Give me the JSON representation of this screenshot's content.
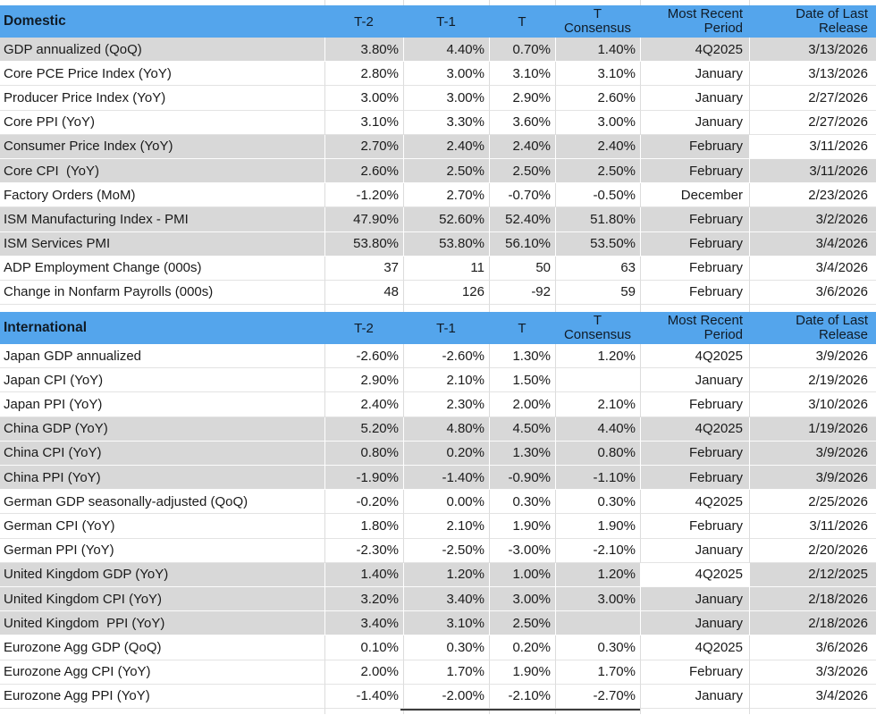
{
  "column_headers": {
    "t2": "T-2",
    "t1": "T-1",
    "t": "T",
    "consensus_line1": "T",
    "consensus_line2": "Consensus",
    "period_line1": "Most Recent",
    "period_line2": "Period",
    "release_line1": "Date of Last",
    "release_line2": "Release"
  },
  "colors": {
    "header_blue": "#54a5ec",
    "row_gray": "#d8d8d8",
    "grid_line": "#dcdcdc",
    "text": "#1a1a1a"
  },
  "sections": [
    {
      "title": "Domestic",
      "rows": [
        {
          "label": "GDP annualized (QoQ)",
          "t2": "3.80%",
          "t1": "4.40%",
          "t": "0.70%",
          "consensus": "1.40%",
          "period": "4Q2025",
          "release": "3/13/2026",
          "shaded": true
        },
        {
          "label": "Core PCE Price Index (YoY)",
          "t2": "2.80%",
          "t1": "3.00%",
          "t": "3.10%",
          "consensus": "3.10%",
          "period": "January",
          "release": "3/13/2026",
          "shaded": false
        },
        {
          "label": "Producer Price Index (YoY)",
          "t2": "3.00%",
          "t1": "3.00%",
          "t": "2.90%",
          "consensus": "2.60%",
          "period": "January",
          "release": "2/27/2026",
          "shaded": false
        },
        {
          "label": "Core PPI (YoY)",
          "t2": "3.10%",
          "t1": "3.30%",
          "t": "3.60%",
          "consensus": "3.00%",
          "period": "January",
          "release": "2/27/2026",
          "shaded": false
        },
        {
          "label": "Consumer Price Index (YoY)",
          "t2": "2.70%",
          "t1": "2.40%",
          "t": "2.40%",
          "consensus": "2.40%",
          "period": "February",
          "release": "3/11/2026",
          "shaded": true,
          "white_cells": [
            "release"
          ]
        },
        {
          "label": "Core CPI  (YoY)",
          "t2": "2.60%",
          "t1": "2.50%",
          "t": "2.50%",
          "consensus": "2.50%",
          "period": "February",
          "release": "3/11/2026",
          "shaded": true
        },
        {
          "label": "Factory Orders (MoM)",
          "t2": "-1.20%",
          "t1": "2.70%",
          "t": "-0.70%",
          "consensus": "-0.50%",
          "period": "December",
          "release": "2/23/2026",
          "shaded": false
        },
        {
          "label": "ISM Manufacturing Index - PMI",
          "t2": "47.90%",
          "t1": "52.60%",
          "t": "52.40%",
          "consensus": "51.80%",
          "period": "February",
          "release": "3/2/2026",
          "shaded": true
        },
        {
          "label": "ISM Services PMI",
          "t2": "53.80%",
          "t1": "53.80%",
          "t": "56.10%",
          "consensus": "53.50%",
          "period": "February",
          "release": "3/4/2026",
          "shaded": true
        },
        {
          "label": "ADP Employment Change (000s)",
          "t2": "37",
          "t1": "11",
          "t": "50",
          "consensus": "63",
          "period": "February",
          "release": "3/4/2026",
          "shaded": false
        },
        {
          "label": "Change in Nonfarm Payrolls (000s)",
          "t2": "48",
          "t1": "126",
          "t": "-92",
          "consensus": "59",
          "period": "February",
          "release": "3/6/2026",
          "shaded": false
        }
      ]
    },
    {
      "title": "International",
      "rows": [
        {
          "label": "Japan GDP annualized",
          "t2": "-2.60%",
          "t1": "-2.60%",
          "t": "1.30%",
          "consensus": "1.20%",
          "period": "4Q2025",
          "release": "3/9/2026",
          "shaded": false
        },
        {
          "label": "Japan CPI (YoY)",
          "t2": "2.90%",
          "t1": "2.10%",
          "t": "1.50%",
          "consensus": "",
          "period": "January",
          "release": "2/19/2026",
          "shaded": false
        },
        {
          "label": "Japan PPI (YoY)",
          "t2": "2.40%",
          "t1": "2.30%",
          "t": "2.00%",
          "consensus": "2.10%",
          "period": "February",
          "release": "3/10/2026",
          "shaded": false
        },
        {
          "label": "China GDP (YoY)",
          "t2": "5.20%",
          "t1": "4.80%",
          "t": "4.50%",
          "consensus": "4.40%",
          "period": "4Q2025",
          "release": "1/19/2026",
          "shaded": true
        },
        {
          "label": "China CPI (YoY)",
          "t2": "0.80%",
          "t1": "0.20%",
          "t": "1.30%",
          "consensus": "0.80%",
          "period": "February",
          "release": "3/9/2026",
          "shaded": true
        },
        {
          "label": "China PPI (YoY)",
          "t2": "-1.90%",
          "t1": "-1.40%",
          "t": "-0.90%",
          "consensus": "-1.10%",
          "period": "February",
          "release": "3/9/2026",
          "shaded": true
        },
        {
          "label": "German GDP seasonally-adjusted (QoQ)",
          "t2": "-0.20%",
          "t1": "0.00%",
          "t": "0.30%",
          "consensus": "0.30%",
          "period": "4Q2025",
          "release": "2/25/2026",
          "shaded": false
        },
        {
          "label": "German CPI (YoY)",
          "t2": "1.80%",
          "t1": "2.10%",
          "t": "1.90%",
          "consensus": "1.90%",
          "period": "February",
          "release": "3/11/2026",
          "shaded": false
        },
        {
          "label": "German PPI (YoY)",
          "t2": "-2.30%",
          "t1": "-2.50%",
          "t": "-3.00%",
          "consensus": "-2.10%",
          "period": "January",
          "release": "2/20/2026",
          "shaded": false
        },
        {
          "label": "United Kingdom GDP (YoY)",
          "t2": "1.40%",
          "t1": "1.20%",
          "t": "1.00%",
          "consensus": "1.20%",
          "period": "4Q2025",
          "release": "2/12/2025",
          "shaded": true,
          "white_cells": [
            "period"
          ]
        },
        {
          "label": "United Kingdom CPI (YoY)",
          "t2": "3.20%",
          "t1": "3.40%",
          "t": "3.00%",
          "consensus": "3.00%",
          "period": "January",
          "release": "2/18/2026",
          "shaded": true
        },
        {
          "label": "United Kingdom  PPI (YoY)",
          "t2": "3.40%",
          "t1": "3.10%",
          "t": "2.50%",
          "consensus": "",
          "period": "January",
          "release": "2/18/2026",
          "shaded": true
        },
        {
          "label": "Eurozone Agg GDP (QoQ)",
          "t2": "0.10%",
          "t1": "0.30%",
          "t": "0.20%",
          "consensus": "0.30%",
          "period": "4Q2025",
          "release": "3/6/2026",
          "shaded": false
        },
        {
          "label": "Eurozone Agg CPI (YoY)",
          "t2": "2.00%",
          "t1": "1.70%",
          "t": "1.90%",
          "consensus": "1.70%",
          "period": "February",
          "release": "3/3/2026",
          "shaded": false
        },
        {
          "label": "Eurozone Agg PPI (YoY)",
          "t2": "-1.40%",
          "t1": "-2.00%",
          "t": "-2.10%",
          "consensus": "-2.70%",
          "period": "January",
          "release": "3/4/2026",
          "shaded": false
        }
      ]
    }
  ]
}
